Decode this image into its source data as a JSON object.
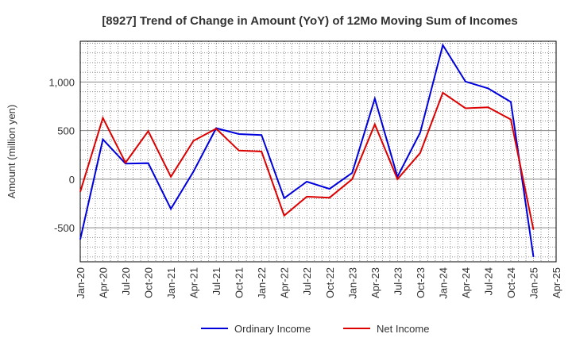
{
  "chart_data": {
    "type": "line",
    "title": "[8927]  Trend of Change in Amount (YoY) of 12Mo Moving Sum of Incomes",
    "xlabel": "",
    "ylabel": "Amount (million yen)",
    "ylim": [
      -850,
      1420
    ],
    "yticks": [
      -500,
      0,
      500,
      1000
    ],
    "ytick_labels": [
      "-500",
      "0",
      "500",
      "1,000"
    ],
    "xtick_labels": [
      "Jan-20",
      "Apr-20",
      "Jul-20",
      "Oct-20",
      "Jan-21",
      "Apr-21",
      "Jul-21",
      "Oct-21",
      "Jan-22",
      "Apr-22",
      "Jul-22",
      "Oct-22",
      "Jan-23",
      "Apr-23",
      "Jul-23",
      "Oct-23",
      "Jan-24",
      "Apr-24",
      "Jul-24",
      "Oct-24",
      "Jan-25",
      "Apr-25"
    ],
    "grid": true,
    "legend_position": "bottom",
    "series": [
      {
        "name": "Ordinary Income",
        "color": "#0000dd",
        "values": [
          -620,
          410,
          160,
          165,
          -305,
          80,
          525,
          465,
          455,
          -195,
          -25,
          -100,
          65,
          830,
          25,
          480,
          1380,
          1005,
          935,
          795,
          -800
        ]
      },
      {
        "name": "Net Income",
        "color": "#dd0000",
        "values": [
          -130,
          630,
          170,
          495,
          25,
          395,
          520,
          295,
          285,
          -375,
          -180,
          -190,
          0,
          565,
          0,
          270,
          890,
          730,
          740,
          615,
          -520
        ]
      }
    ]
  }
}
